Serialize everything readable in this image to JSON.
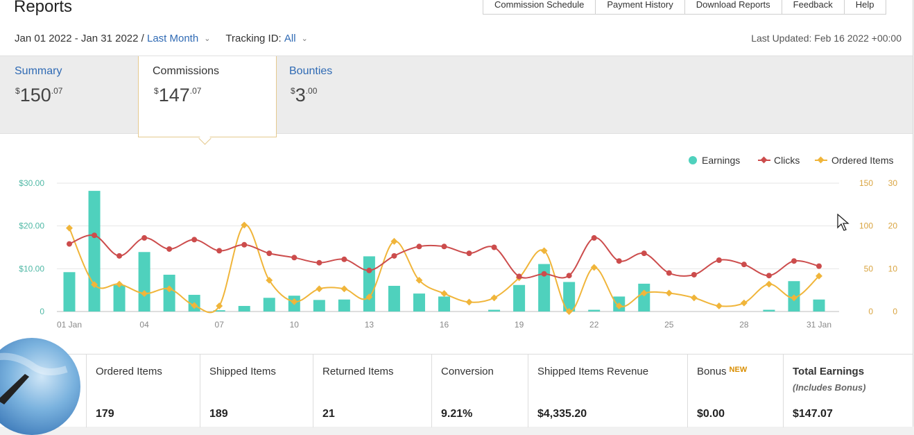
{
  "header": {
    "title": "Reports",
    "nav": [
      "Commission Schedule",
      "Payment History",
      "Download Reports",
      "Feedback",
      "Help"
    ],
    "date_range": "Jan 01 2022 - Jan 31 2022 /",
    "period": "Last Month",
    "tracking_label": "Tracking ID:",
    "tracking_value": "All",
    "last_updated": "Last Updated: Feb 16 2022 +00:00"
  },
  "tabs": [
    {
      "label": "Summary",
      "currency": "$",
      "whole": "150",
      "cents": ".07"
    },
    {
      "label": "Commissions",
      "currency": "$",
      "whole": "147",
      "cents": ".07"
    },
    {
      "label": "Bounties",
      "currency": "$",
      "whole": "3",
      "cents": ".00"
    }
  ],
  "chart_data": {
    "type": "bar+line",
    "legend": [
      "Earnings",
      "Clicks",
      "Ordered Items"
    ],
    "legend_position": "top-right",
    "colors": {
      "earnings": "#4fd1bd",
      "clicks": "#cc4c4c",
      "ordered": "#f0b53a",
      "left_axis": "#4fb8a5",
      "right_axis": "#d9a440"
    },
    "x": [
      1,
      2,
      3,
      4,
      5,
      6,
      7,
      8,
      9,
      10,
      11,
      12,
      13,
      14,
      15,
      16,
      17,
      18,
      19,
      20,
      21,
      22,
      23,
      24,
      25,
      26,
      27,
      28,
      29,
      30,
      31
    ],
    "x_tick_labels": [
      "01 Jan",
      "04",
      "07",
      "10",
      "13",
      "16",
      "19",
      "22",
      "25",
      "28",
      "31 Jan"
    ],
    "x_tick_days": [
      1,
      4,
      7,
      10,
      13,
      16,
      19,
      22,
      25,
      28,
      31
    ],
    "earnings_axis": {
      "ticks": [
        "$30.00",
        "$20.00",
        "$10.00",
        "0"
      ],
      "ylim": [
        0,
        30
      ]
    },
    "clicks_axis": {
      "ticks": [
        "150",
        "100",
        "50",
        "0"
      ],
      "ylim": [
        0,
        150
      ]
    },
    "ordered_axis": {
      "ticks": [
        "30",
        "20",
        "10",
        "0"
      ],
      "ylim": [
        0,
        30
      ]
    },
    "series": [
      {
        "name": "Earnings",
        "values": [
          9.2,
          28.2,
          6.2,
          13.9,
          8.6,
          3.9,
          0.3,
          1.3,
          3.2,
          3.7,
          2.7,
          2.8,
          12.9,
          6.0,
          4.2,
          3.5,
          0,
          0.4,
          6.2,
          11.1,
          6.9,
          0.4,
          3.5,
          6.5,
          0,
          0,
          0,
          0,
          0.4,
          7.1,
          2.8
        ]
      },
      {
        "name": "Clicks",
        "values": [
          79,
          89,
          65,
          86,
          73,
          84,
          71,
          78,
          68,
          63,
          57,
          61,
          48,
          65,
          76,
          76,
          68,
          75,
          41,
          44,
          42,
          86,
          59,
          68,
          45,
          43,
          60,
          55,
          42,
          59,
          53
        ]
      },
      {
        "name": "Ordered Items",
        "values": [
          19.5,
          6.3,
          6.4,
          4.2,
          5.3,
          1.4,
          1.3,
          20.2,
          7.3,
          2.3,
          5.3,
          5.3,
          3.4,
          16.4,
          7.3,
          4.2,
          2.2,
          3.2,
          7.9,
          14.2,
          0,
          10.3,
          1.3,
          4.3,
          4.3,
          3.2,
          1.3,
          2.0,
          6.4,
          3.2,
          8.3
        ]
      }
    ]
  },
  "stats": [
    {
      "label": "Ordered Items",
      "value": "179"
    },
    {
      "label": "Shipped Items",
      "value": "189"
    },
    {
      "label": "Returned Items",
      "value": "21"
    },
    {
      "label": "Conversion",
      "value": "9.21%"
    },
    {
      "label": "Shipped Items Revenue",
      "value": "$4,335.20"
    },
    {
      "label": "Bonus",
      "badge": "NEW",
      "value": "$0.00"
    },
    {
      "label": "Total Earnings",
      "sub": "(Includes Bonus)",
      "value": "$147.07"
    }
  ]
}
